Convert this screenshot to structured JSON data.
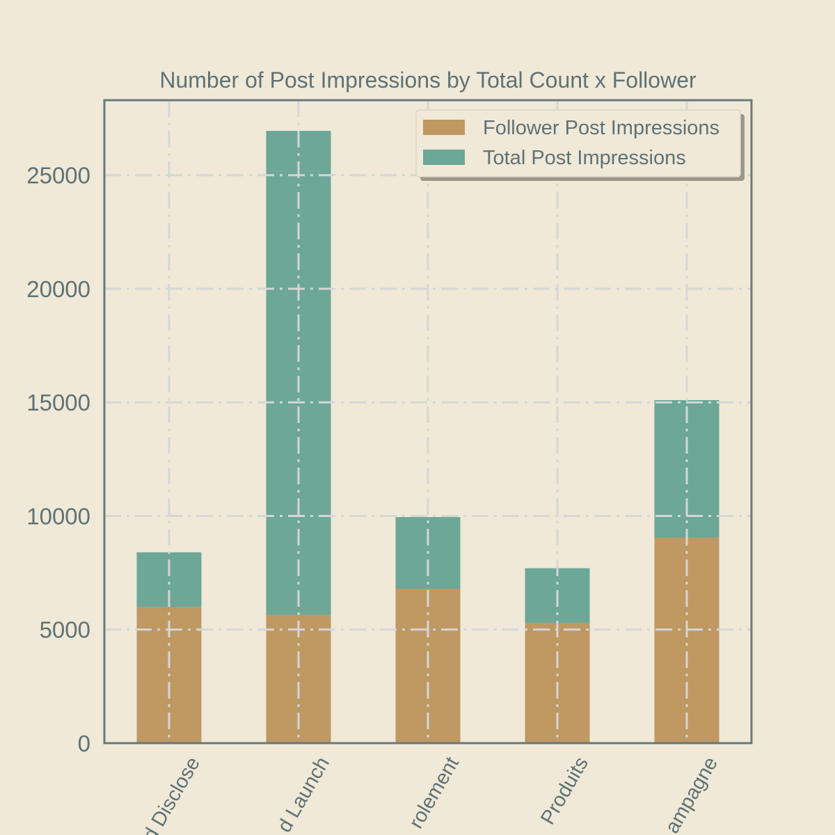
{
  "chart_data": {
    "type": "bar",
    "stacked": true,
    "title": "Number of Post Impressions by Total Count x Follower",
    "xlabel": "",
    "ylabel": "",
    "categories": [
      "d Disclose",
      "d Launch",
      "rolement",
      "Produits",
      "ampagne"
    ],
    "series": [
      {
        "name": "Follower Post Impressions",
        "color": "#bf9862",
        "values": [
          6000,
          5650,
          6800,
          5300,
          9050
        ]
      },
      {
        "name": "Total Post Impressions",
        "color": "#6ca797",
        "values": [
          2400,
          21300,
          3150,
          2400,
          6050
        ]
      }
    ],
    "ylim": [
      0,
      28300
    ],
    "yticks": [
      0,
      5000,
      10000,
      15000,
      20000,
      25000
    ],
    "grid": true,
    "legend_position": "top-right"
  },
  "colors": {
    "background": "#f0e9d8",
    "axis": "#667a7b",
    "grid": "#d6d6d6",
    "text": "#5f7275"
  }
}
